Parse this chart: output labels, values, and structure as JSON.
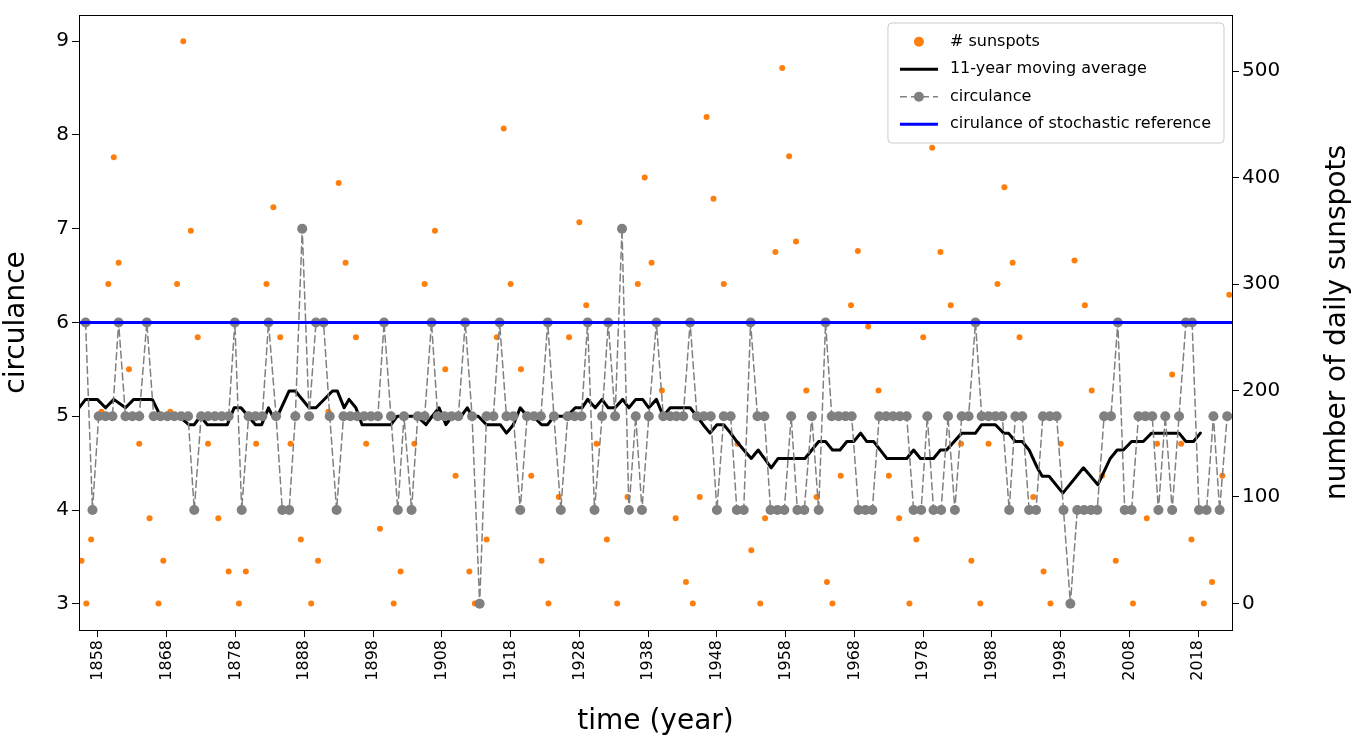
{
  "chart_data": {
    "type": "line",
    "xlabel": "time (year)",
    "ylabel": "circulance",
    "y2label": "number of daily sunspots",
    "xlim": [
      1855.24,
      2022.9
    ],
    "xticks": [
      1858,
      1868,
      1878,
      1888,
      1898,
      1908,
      1918,
      1928,
      1938,
      1948,
      1958,
      1968,
      1978,
      1988,
      1998,
      2008,
      2018
    ],
    "ylim": [
      2.72,
      9.28
    ],
    "yticks": [
      3,
      4,
      5,
      6,
      7,
      8,
      9
    ],
    "y2lim": [
      -25,
      552.7
    ],
    "y2ticks": [
      0,
      100,
      200,
      300,
      400,
      500
    ],
    "grid": false,
    "legend": "top right",
    "series": [
      {
        "name": "# sunspots",
        "type": "scatter",
        "axis": "y2",
        "color": "#ff7f0e",
        "marker": "circle",
        "x": [
          1855.6,
          1856.3,
          1857,
          1858.5,
          1859.5,
          1860.3,
          1861,
          1862.5,
          1864,
          1865.5,
          1866.8,
          1867.5,
          1868.5,
          1869.5,
          1870.4,
          1871.5,
          1872.5,
          1874,
          1875.5,
          1877,
          1878.5,
          1879.5,
          1881,
          1882.5,
          1883.5,
          1884.5,
          1886,
          1887.5,
          1889,
          1890,
          1891.5,
          1893,
          1894,
          1895.5,
          1897,
          1899,
          1901,
          1902,
          1904,
          1905.5,
          1907,
          1908.5,
          1910,
          1912,
          1912.8,
          1914.5,
          1916,
          1917,
          1918,
          1919.5,
          1921,
          1922.5,
          1923.5,
          1925,
          1926.5,
          1928,
          1929,
          1930.5,
          1932,
          1933.5,
          1935,
          1936.5,
          1937.5,
          1938.5,
          1940,
          1942,
          1943.5,
          1944.5,
          1945.5,
          1946.5,
          1947.5,
          1949,
          1951,
          1953,
          1954.3,
          1955,
          1956.5,
          1957.5,
          1958.5,
          1959.5,
          1961,
          1962.5,
          1964,
          1964.8,
          1966,
          1967.5,
          1968.5,
          1970,
          1971.5,
          1973,
          1974.5,
          1976,
          1977,
          1978,
          1979.3,
          1980.5,
          1982,
          1983.5,
          1985,
          1986.3,
          1987.5,
          1988.8,
          1989.8,
          1991,
          1992,
          1994,
          1995.5,
          1996.5,
          1998,
          2000,
          2001.5,
          2002.5,
          2004,
          2006,
          2008.5,
          2010.5,
          2012,
          2014.2,
          2015.5,
          2017,
          2018.8,
          2020,
          2021.5,
          2022.5
        ],
        "values": [
          40,
          0,
          60,
          180,
          300,
          419,
          320,
          220,
          150,
          80,
          0,
          40,
          180,
          300,
          528,
          350,
          250,
          150,
          80,
          30,
          0,
          30,
          150,
          300,
          372,
          250,
          150,
          60,
          0,
          40,
          180,
          395,
          320,
          250,
          150,
          70,
          0,
          30,
          150,
          300,
          350,
          220,
          120,
          30,
          0,
          60,
          250,
          446,
          300,
          220,
          120,
          40,
          0,
          100,
          250,
          358,
          280,
          150,
          60,
          0,
          100,
          300,
          400,
          320,
          200,
          80,
          20,
          0,
          100,
          457,
          380,
          300,
          150,
          50,
          0,
          80,
          330,
          503,
          420,
          340,
          200,
          100,
          20,
          0,
          120,
          280,
          331,
          260,
          200,
          120,
          80,
          0,
          60,
          250,
          428,
          330,
          280,
          150,
          40,
          0,
          150,
          300,
          391,
          320,
          250,
          100,
          30,
          0,
          150,
          322,
          280,
          200,
          120,
          40,
          0,
          80,
          150,
          215,
          150,
          60,
          0,
          20,
          120,
          290
        ]
      },
      {
        "name": "11-year moving average",
        "type": "line",
        "color": "#000000",
        "marker": "none",
        "line_style": "solid",
        "x": [
          1855.24,
          1856.2,
          1857.9,
          1859.1,
          1860.3,
          1862.0,
          1863.2,
          1865.9,
          1867.1,
          1869.8,
          1871.2,
          1872.0,
          1872.9,
          1873.9,
          1876.8,
          1877.8,
          1878.8,
          1880.9,
          1881.8,
          1882.8,
          1883.4,
          1884.1,
          1885.8,
          1886.7,
          1888.7,
          1889.7,
          1892.1,
          1892.8,
          1893.8,
          1894.5,
          1895.5,
          1896.4,
          1900.6,
          1901.5,
          1904.4,
          1905.7,
          1906.6,
          1907.6,
          1908.6,
          1909.5,
          1910.8,
          1911.7,
          1912.4,
          1913.3,
          1914.5,
          1916.5,
          1917.4,
          1918.4,
          1919.4,
          1920.4,
          1921.3,
          1922.5,
          1923.4,
          1924.3,
          1926.2,
          1927.4,
          1928.4,
          1929.2,
          1930.3,
          1931.3,
          1932.2,
          1933.2,
          1934.3,
          1935.2,
          1936.2,
          1937.2,
          1938.1,
          1939.2,
          1940.2,
          1941.2,
          1944.1,
          1945.1,
          1946.0,
          1947.0,
          1948.0,
          1949.0,
          1950.0,
          1950.9,
          1951.9,
          1953.0,
          1954.0,
          1954.9,
          1955.9,
          1956.9,
          1960.8,
          1961.8,
          1962.8,
          1963.8,
          1964.8,
          1965.9,
          1966.9,
          1967.9,
          1968.9,
          1969.8,
          1970.8,
          1972.7,
          1975.6,
          1976.6,
          1977.6,
          1979.5,
          1980.5,
          1981.4,
          1983.6,
          1985.6,
          1986.5,
          1988.5,
          1989.7,
          1990.4,
          1991.4,
          1992.4,
          1993.4,
          1994.6,
          1995.3,
          1996.3,
          1998.3,
          2001.3,
          2003.4,
          2005.2,
          2006.2,
          2007.1,
          2008.3,
          2010.0,
          2011.2,
          2015.2,
          2016.2,
          2017.3,
          2018.3
        ],
        "values": [
          5.09,
          5.18,
          5.18,
          5.09,
          5.18,
          5.09,
          5.18,
          5.18,
          5.0,
          5.0,
          4.91,
          4.91,
          5.0,
          4.91,
          4.91,
          5.09,
          5.09,
          4.91,
          4.91,
          5.09,
          5.0,
          5.0,
          5.27,
          5.27,
          5.09,
          5.09,
          5.27,
          5.27,
          5.09,
          5.18,
          5.09,
          4.91,
          4.91,
          5.0,
          5.0,
          4.91,
          5.0,
          5.09,
          4.91,
          5.0,
          5.0,
          5.09,
          5.0,
          5.0,
          4.91,
          4.91,
          4.82,
          4.91,
          5.09,
          5.0,
          5.0,
          4.91,
          4.91,
          5.0,
          5.0,
          5.09,
          5.09,
          5.18,
          5.09,
          5.18,
          5.09,
          5.09,
          5.18,
          5.09,
          5.18,
          5.18,
          5.09,
          5.18,
          5.0,
          5.09,
          5.09,
          5.0,
          4.91,
          4.82,
          4.91,
          4.91,
          4.82,
          4.73,
          4.64,
          4.55,
          4.64,
          4.55,
          4.45,
          4.55,
          4.55,
          4.64,
          4.73,
          4.73,
          4.64,
          4.64,
          4.73,
          4.73,
          4.82,
          4.73,
          4.73,
          4.55,
          4.55,
          4.64,
          4.55,
          4.55,
          4.64,
          4.64,
          4.82,
          4.82,
          4.91,
          4.91,
          4.82,
          4.82,
          4.73,
          4.73,
          4.64,
          4.45,
          4.36,
          4.36,
          4.18,
          4.45,
          4.27,
          4.55,
          4.64,
          4.64,
          4.73,
          4.73,
          4.82,
          4.82,
          4.73,
          4.73,
          4.82
        ]
      },
      {
        "name": "circulance",
        "type": "line",
        "color": "#808080",
        "marker": "circle",
        "line_style": "dashed",
        "x": [
          1856.2,
          1857.2,
          1858.1,
          1859.1,
          1860.1,
          1861.0,
          1862.0,
          1863.0,
          1864.0,
          1865.1,
          1866.1,
          1867.1,
          1868.1,
          1869.1,
          1870.1,
          1871.1,
          1872.0,
          1873.0,
          1874.0,
          1875.0,
          1876.0,
          1877.0,
          1877.9,
          1878.9,
          1879.9,
          1880.9,
          1881.9,
          1882.8,
          1883.9,
          1884.8,
          1885.8,
          1886.7,
          1887.7,
          1888.7,
          1889.7,
          1890.8,
          1891.7,
          1892.7,
          1893.7,
          1894.7,
          1895.7,
          1896.7,
          1897.7,
          1898.7,
          1899.6,
          1900.6,
          1901.6,
          1902.5,
          1903.6,
          1904.5,
          1905.5,
          1906.5,
          1907.4,
          1908.4,
          1909.4,
          1910.4,
          1911.4,
          1912.4,
          1913.5,
          1914.5,
          1915.5,
          1916.4,
          1917.4,
          1918.4,
          1919.4,
          1920.4,
          1921.4,
          1922.4,
          1923.4,
          1924.3,
          1925.3,
          1926.3,
          1927.3,
          1928.3,
          1929.2,
          1930.2,
          1931.3,
          1932.2,
          1933.2,
          1934.2,
          1935.2,
          1936.2,
          1937.1,
          1938.1,
          1939.2,
          1940.2,
          1941.2,
          1942.1,
          1943.1,
          1944.1,
          1945.1,
          1946.1,
          1947.1,
          1948.0,
          1949.0,
          1950.0,
          1950.9,
          1951.9,
          1952.9,
          1953.9,
          1954.9,
          1955.8,
          1956.8,
          1957.8,
          1958.8,
          1959.7,
          1960.7,
          1961.8,
          1962.8,
          1963.8,
          1964.7,
          1965.7,
          1966.7,
          1967.6,
          1968.6,
          1969.6,
          1970.6,
          1971.6,
          1972.6,
          1973.6,
          1974.6,
          1975.6,
          1976.6,
          1977.7,
          1978.6,
          1979.5,
          1980.6,
          1981.6,
          1982.6,
          1983.6,
          1984.6,
          1985.6,
          1986.5,
          1987.5,
          1988.5,
          1989.5,
          1990.5,
          1991.4,
          1992.4,
          1993.4,
          1994.4,
          1995.4,
          1996.4,
          1997.4,
          1998.4,
          1999.4,
          2000.4,
          2001.4,
          2002.4,
          2003.3,
          2004.3,
          2005.3,
          2006.3,
          2007.3,
          2008.3,
          2009.3,
          2010.3,
          2011.3,
          2012.2,
          2013.2,
          2014.2,
          2015.2,
          2016.2,
          2017.1,
          2018.1,
          2019.2,
          2020.2,
          2021.1,
          2022.2
        ],
        "values": [
          6,
          4,
          5,
          5,
          5,
          6,
          5,
          5,
          5,
          6,
          5,
          5,
          5,
          5,
          5,
          5,
          4,
          5,
          5,
          5,
          5,
          5,
          6,
          4,
          5,
          5,
          5,
          6,
          5,
          4,
          4,
          5,
          7,
          5,
          6,
          6,
          5,
          4,
          5,
          5,
          5,
          5,
          5,
          5,
          6,
          5,
          4,
          5,
          4,
          5,
          5,
          6,
          5,
          5,
          5,
          5,
          6,
          5,
          3,
          5,
          5,
          6,
          5,
          5,
          4,
          5,
          5,
          5,
          6,
          5,
          4,
          5,
          5,
          5,
          6,
          4,
          5,
          6,
          5,
          7,
          4,
          5,
          4,
          5,
          6,
          5,
          5,
          5,
          5,
          6,
          5,
          5,
          5,
          4,
          5,
          5,
          4,
          4,
          6,
          5,
          5,
          4,
          4,
          4,
          5,
          4,
          4,
          5,
          4,
          6,
          5,
          5,
          5,
          5,
          4,
          4,
          4,
          5,
          5,
          5,
          5,
          5,
          4,
          4,
          5,
          4,
          4,
          5,
          4,
          5,
          5,
          6,
          5,
          5,
          5,
          5,
          4,
          5,
          5,
          4,
          4,
          5,
          5,
          5,
          4,
          3,
          4,
          4,
          4,
          4,
          5,
          5,
          6,
          4,
          4,
          5,
          5,
          5,
          4,
          5,
          4,
          5,
          6,
          6,
          4,
          4,
          5,
          4,
          5
        ]
      },
      {
        "name": "cirulance of stochastic reference",
        "type": "line",
        "color": "#0000ff",
        "marker": "none",
        "line_style": "solid",
        "x": [
          1855.24,
          2022.9
        ],
        "values": [
          6,
          6
        ]
      }
    ]
  }
}
